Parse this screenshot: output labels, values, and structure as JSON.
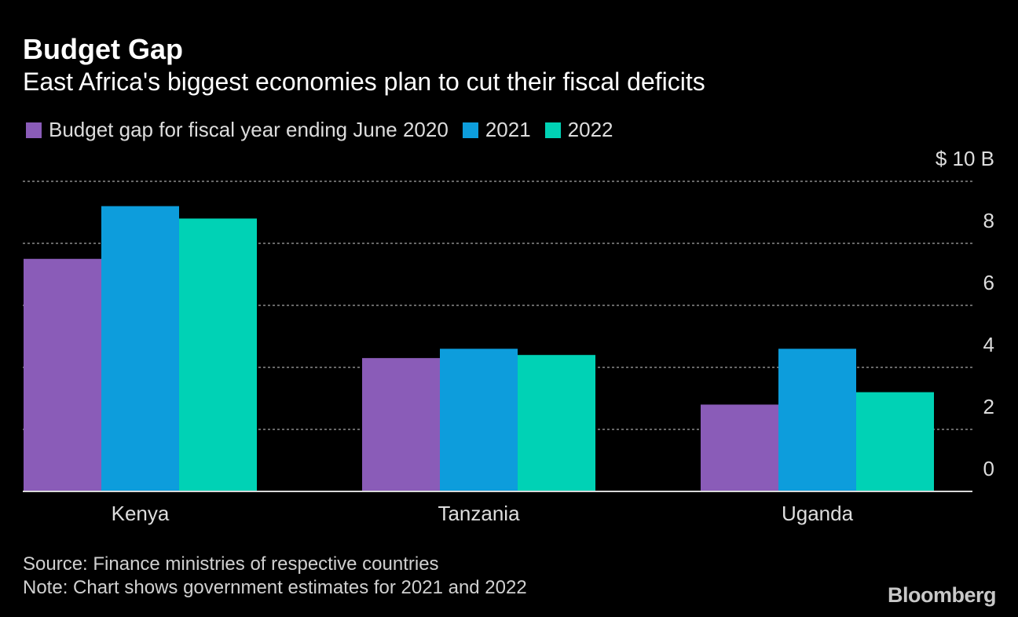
{
  "title": "Budget Gap",
  "subtitle": "East Africa's biggest economies plan to cut their fiscal deficits",
  "footer": {
    "source": "Source: Finance ministries of respective countries",
    "note": "Note: Chart shows government estimates for 2021 and 2022"
  },
  "logo": "Bloomberg",
  "chart_data": {
    "type": "bar",
    "title": "Budget Gap",
    "subtitle": "East Africa's biggest economies plan to cut their fiscal deficits",
    "categories": [
      "Kenya",
      "Tanzania",
      "Uganda"
    ],
    "series": [
      {
        "name": "Budget gap for fiscal year ending June 2020",
        "color": "#8a5cb8",
        "values": [
          7.5,
          4.3,
          2.8
        ]
      },
      {
        "name": "2021",
        "color": "#0d9ddc",
        "values": [
          9.2,
          4.6,
          4.6
        ]
      },
      {
        "name": "2022",
        "color": "#00d2b5",
        "values": [
          8.8,
          4.4,
          3.2
        ]
      }
    ],
    "y_ticks": [
      "0",
      "2",
      "4",
      "6",
      "8",
      "$ 10 B"
    ],
    "ylim": [
      0,
      10
    ],
    "grid": true,
    "grid_style": "dashed",
    "y_axis_position": "right",
    "legend_position": "top-left"
  }
}
